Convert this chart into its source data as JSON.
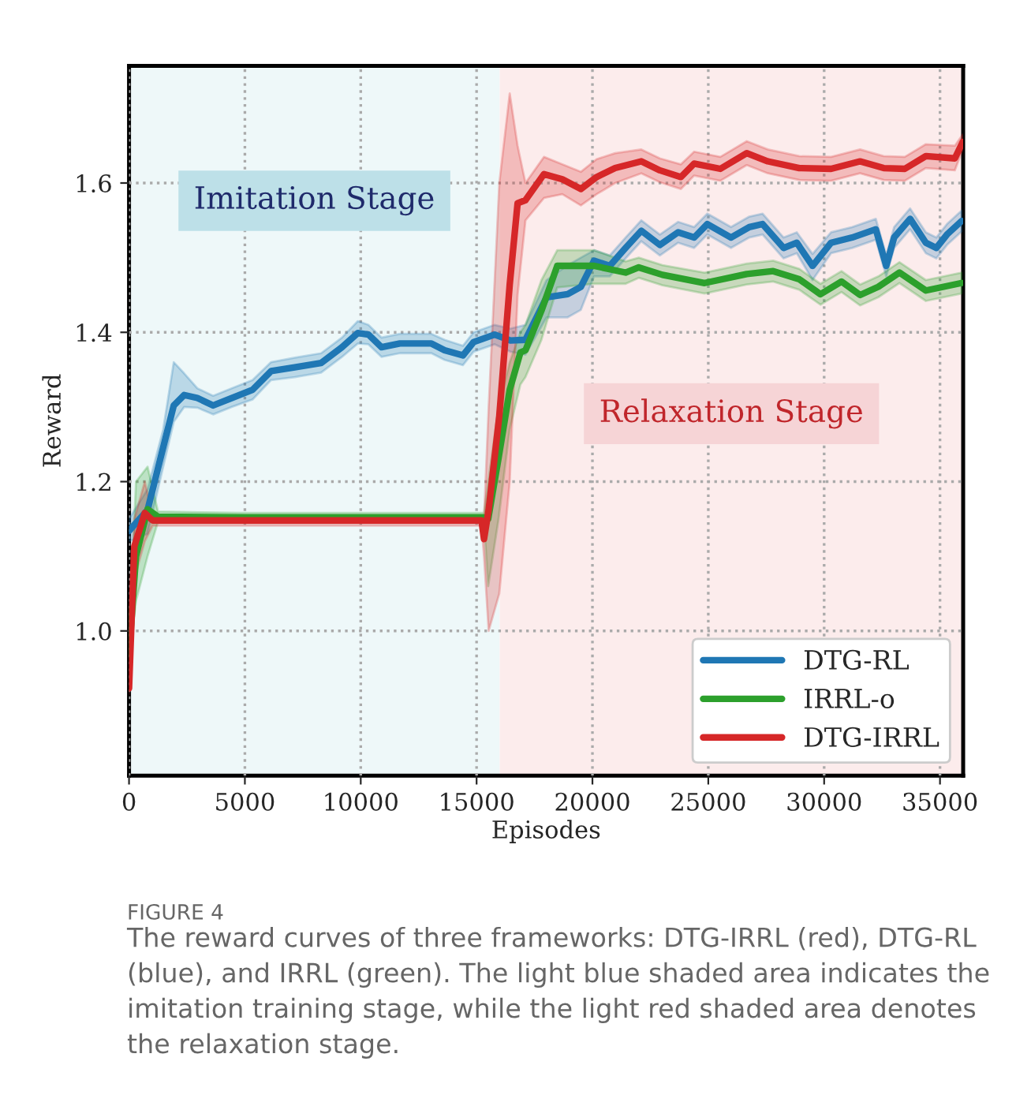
{
  "chart_data": {
    "type": "line",
    "xlabel": "Episodes",
    "ylabel": "Reward",
    "xlim": [
      0,
      36000
    ],
    "xticks": [
      0,
      5000,
      10000,
      15000,
      20000,
      25000,
      30000,
      35000
    ],
    "ylim": [
      0.806,
      1.757
    ],
    "yticks": [
      {
        "value": 1.0,
        "label": "1.0"
      },
      1.2,
      1.4,
      1.6
    ],
    "grid": true,
    "legend": "lower right",
    "line_style": "solid",
    "bands": [
      {
        "axis": "x",
        "from": 0,
        "to": 16000,
        "label": "Imitation Stage",
        "color": "#eef8f9"
      },
      {
        "axis": "x",
        "from": 16000,
        "to": 36000,
        "label": "Relaxation Stage",
        "color": "#fcecec"
      }
    ],
    "series": [
      {
        "name": "DTG-RL",
        "color": "#1f77b4",
        "x": [
          0,
          800,
          1475,
          1930,
          2380,
          2950,
          3630,
          4430,
          5330,
          6130,
          7150,
          8290,
          9190,
          9875,
          10330,
          10900,
          11690,
          13050,
          13620,
          14410,
          14870,
          15780,
          16460,
          17110,
          18020,
          18930,
          19500,
          20070,
          20750,
          21430,
          22110,
          22910,
          23700,
          24390,
          24960,
          25980,
          26770,
          27340,
          28250,
          28820,
          29500,
          30300,
          31210,
          32230,
          32680,
          33020,
          33710,
          34390,
          34840,
          35300,
          35930
        ],
        "values": [
          1.134,
          1.162,
          1.246,
          1.302,
          1.316,
          1.312,
          1.302,
          1.312,
          1.323,
          1.348,
          1.353,
          1.359,
          1.38,
          1.399,
          1.397,
          1.38,
          1.385,
          1.385,
          1.376,
          1.369,
          1.387,
          1.397,
          1.389,
          1.39,
          1.447,
          1.451,
          1.461,
          1.496,
          1.489,
          1.513,
          1.536,
          1.517,
          1.534,
          1.527,
          1.545,
          1.527,
          1.541,
          1.545,
          1.513,
          1.52,
          1.489,
          1.52,
          1.527,
          1.538,
          1.489,
          1.527,
          1.552,
          1.52,
          1.513,
          1.531,
          1.549
        ],
        "upper": [
          1.15,
          1.19,
          1.27,
          1.36,
          1.345,
          1.325,
          1.315,
          1.325,
          1.336,
          1.36,
          1.366,
          1.372,
          1.393,
          1.415,
          1.41,
          1.393,
          1.398,
          1.398,
          1.39,
          1.382,
          1.4,
          1.41,
          1.405,
          1.41,
          1.47,
          1.49,
          1.5,
          1.51,
          1.503,
          1.527,
          1.55,
          1.531,
          1.548,
          1.541,
          1.559,
          1.541,
          1.555,
          1.559,
          1.527,
          1.534,
          1.505,
          1.534,
          1.541,
          1.552,
          1.503,
          1.541,
          1.566,
          1.534,
          1.527,
          1.545,
          1.563
        ],
        "lower": [
          1.12,
          1.13,
          1.22,
          1.28,
          1.3,
          1.299,
          1.29,
          1.3,
          1.31,
          1.336,
          1.34,
          1.346,
          1.367,
          1.385,
          1.384,
          1.367,
          1.372,
          1.372,
          1.363,
          1.356,
          1.374,
          1.384,
          1.374,
          1.37,
          1.42,
          1.42,
          1.43,
          1.475,
          1.475,
          1.499,
          1.522,
          1.503,
          1.52,
          1.513,
          1.531,
          1.513,
          1.527,
          1.531,
          1.499,
          1.506,
          1.47,
          1.506,
          1.513,
          1.524,
          1.475,
          1.513,
          1.538,
          1.506,
          1.499,
          1.517,
          1.535
        ]
      },
      {
        "name": "IRRL-o",
        "color": "#2ca02c",
        "x": [
          0,
          300,
          800,
          1250,
          5000,
          10000,
          15320,
          15500,
          15950,
          16430,
          16890,
          17110,
          17800,
          18480,
          20070,
          21430,
          22000,
          23020,
          24840,
          26660,
          27800,
          28930,
          29840,
          30750,
          31550,
          32340,
          33250,
          34390,
          35930
        ],
        "values": [
          0.97,
          1.1,
          1.163,
          1.153,
          1.152,
          1.152,
          1.152,
          1.15,
          1.232,
          1.323,
          1.373,
          1.376,
          1.429,
          1.489,
          1.489,
          1.48,
          1.487,
          1.477,
          1.466,
          1.478,
          1.482,
          1.471,
          1.451,
          1.468,
          1.45,
          1.461,
          1.48,
          1.456,
          1.466
        ],
        "upper": [
          0.98,
          1.2,
          1.22,
          1.16,
          1.158,
          1.158,
          1.158,
          1.2,
          1.3,
          1.36,
          1.4,
          1.41,
          1.47,
          1.51,
          1.51,
          1.495,
          1.5,
          1.49,
          1.48,
          1.492,
          1.496,
          1.485,
          1.465,
          1.482,
          1.464,
          1.475,
          1.494,
          1.47,
          1.48
        ],
        "lower": [
          0.96,
          1.04,
          1.1,
          1.146,
          1.146,
          1.146,
          1.146,
          1.06,
          1.15,
          1.27,
          1.33,
          1.34,
          1.39,
          1.46,
          1.465,
          1.465,
          1.473,
          1.463,
          1.452,
          1.464,
          1.468,
          1.457,
          1.437,
          1.454,
          1.436,
          1.447,
          1.466,
          1.442,
          1.452
        ]
      },
      {
        "name": "DTG-IRRL",
        "color": "#d62728",
        "x": [
          0,
          227,
          680,
          1020,
          5000,
          10000,
          15210,
          15320,
          15520,
          15980,
          16430,
          16770,
          17110,
          17910,
          18700,
          19500,
          20180,
          20980,
          22110,
          22910,
          23820,
          24390,
          25520,
          26660,
          27570,
          28930,
          30300,
          31550,
          32570,
          33480,
          34390,
          35640,
          35980
        ],
        "values": [
          0.923,
          1.113,
          1.158,
          1.148,
          1.148,
          1.148,
          1.148,
          1.123,
          1.162,
          1.288,
          1.464,
          1.573,
          1.577,
          1.612,
          1.605,
          1.592,
          1.608,
          1.62,
          1.629,
          1.617,
          1.608,
          1.626,
          1.619,
          1.64,
          1.629,
          1.62,
          1.619,
          1.629,
          1.62,
          1.619,
          1.636,
          1.633,
          1.655
        ],
        "upper": [
          0.93,
          1.15,
          1.2,
          1.155,
          1.155,
          1.155,
          1.155,
          1.15,
          1.3,
          1.6,
          1.72,
          1.65,
          1.6,
          1.635,
          1.625,
          1.615,
          1.632,
          1.64,
          1.645,
          1.633,
          1.625,
          1.642,
          1.635,
          1.656,
          1.645,
          1.636,
          1.635,
          1.645,
          1.636,
          1.635,
          1.652,
          1.65,
          1.665
        ],
        "lower": [
          0.915,
          1.07,
          1.12,
          1.141,
          1.141,
          1.141,
          1.141,
          1.1,
          1.0,
          1.05,
          1.2,
          1.45,
          1.55,
          1.58,
          1.585,
          1.57,
          1.585,
          1.6,
          1.613,
          1.601,
          1.592,
          1.61,
          1.603,
          1.624,
          1.613,
          1.604,
          1.603,
          1.613,
          1.604,
          1.603,
          1.62,
          1.617,
          1.645
        ]
      }
    ],
    "annotations": [
      "FIGURE 4",
      "The reward curves of three frameworks: DTG-IRRL (red), DTG-RL (blue), and IRRL (green). The light blue shaded area indicates the imitation training stage, while the light red shaded area denotes the relaxation stage."
    ]
  }
}
